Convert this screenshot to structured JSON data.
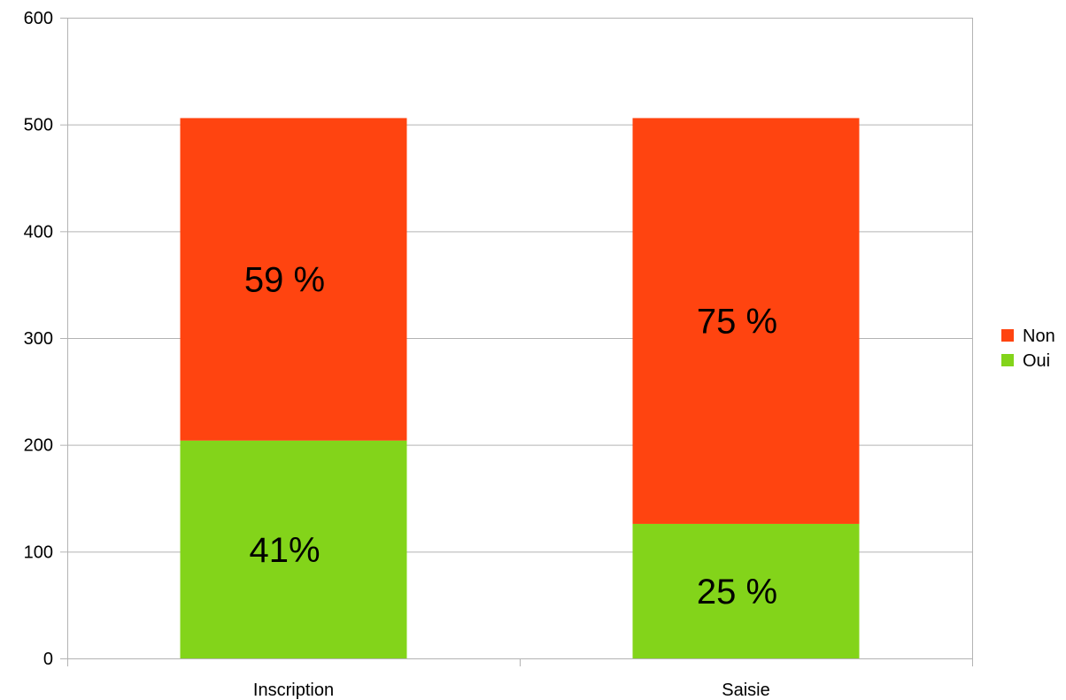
{
  "chart_data": {
    "type": "bar",
    "stacked": true,
    "categories": [
      "Inscription",
      "Saisie"
    ],
    "series": [
      {
        "name": "Oui",
        "color": "#83d41a",
        "values": [
          204,
          126
        ],
        "labels": [
          "41%",
          "25 %"
        ]
      },
      {
        "name": "Non",
        "color": "#ff4410",
        "values": [
          302,
          380
        ],
        "labels": [
          "59 %",
          "75 %"
        ]
      }
    ],
    "ylim": [
      0,
      600
    ],
    "yticks": [
      0,
      100,
      200,
      300,
      400,
      500,
      600
    ],
    "grid": true,
    "legend": "right",
    "title": "",
    "xlabel": "",
    "ylabel": ""
  }
}
